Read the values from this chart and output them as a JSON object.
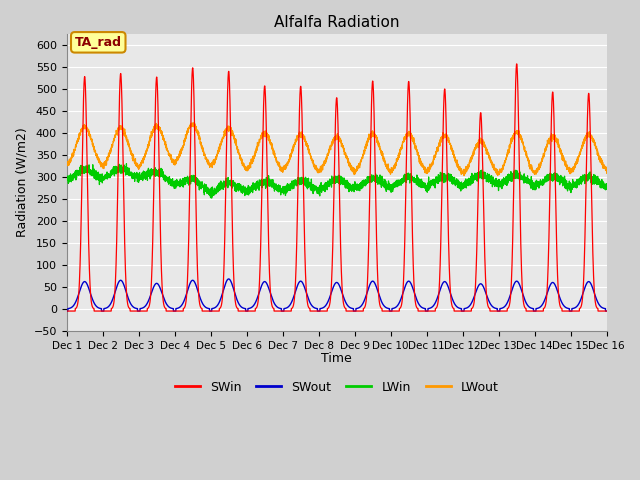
{
  "title": "Alfalfa Radiation",
  "ylabel": "Radiation (W/m2)",
  "xlabel": "Time",
  "xlim": [
    0,
    15
  ],
  "ylim": [
    -50,
    625
  ],
  "yticks": [
    -50,
    0,
    50,
    100,
    150,
    200,
    250,
    300,
    350,
    400,
    450,
    500,
    550,
    600
  ],
  "xtick_labels": [
    "Dec 1",
    "Dec 2",
    "Dec 3",
    "Dec 4",
    "Dec 5",
    "Dec 6",
    "Dec 7",
    "Dec 8",
    "Dec 9",
    "Dec 10",
    "Dec 11",
    "Dec 12",
    "Dec 13",
    "Dec 14",
    "Dec 15",
    "Dec 16"
  ],
  "fig_bg_color": "#d0d0d0",
  "ax_bg_color": "#e8e8e8",
  "grid_color": "#ffffff",
  "colors": {
    "SWin": "#ff0000",
    "SWout": "#0000cc",
    "LWin": "#00cc00",
    "LWout": "#ff9900"
  },
  "annotation_text": "TA_rad",
  "annotation_bg": "#ffff99",
  "annotation_border": "#cc8800",
  "n_days": 15,
  "SWin_peaks": [
    528,
    535,
    527,
    548,
    540,
    507,
    506,
    480,
    518,
    517,
    500,
    446,
    557,
    493,
    490
  ],
  "SWout_peaks": [
    62,
    65,
    58,
    65,
    68,
    62,
    63,
    60,
    63,
    63,
    62,
    57,
    63,
    60,
    62
  ],
  "LWin_base": 280,
  "LWout_base": 315,
  "night_value": -5
}
